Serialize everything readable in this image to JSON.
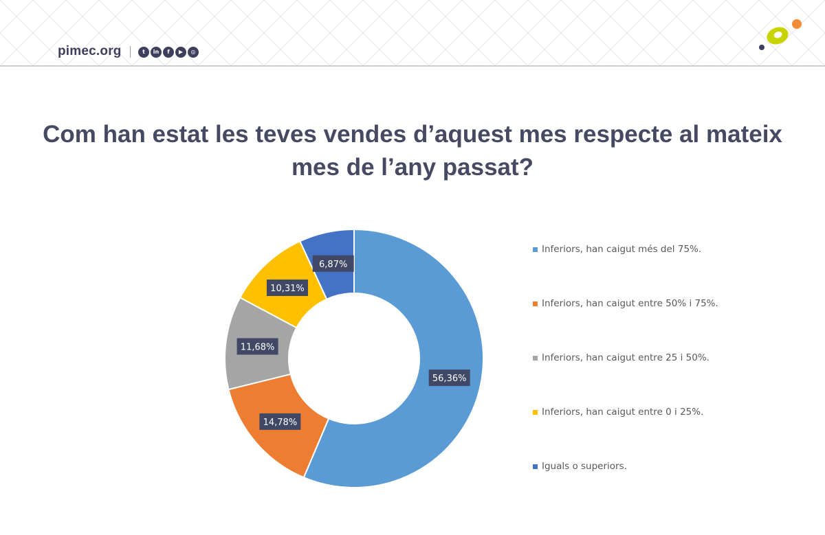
{
  "header": {
    "site": "pimec.org",
    "social_icons": [
      {
        "name": "twitter-icon",
        "glyph": "t"
      },
      {
        "name": "linkedin-icon",
        "glyph": "in"
      },
      {
        "name": "facebook-icon",
        "glyph": "f"
      },
      {
        "name": "youtube-icon",
        "glyph": "▶"
      },
      {
        "name": "instagram-icon",
        "glyph": "◎"
      }
    ]
  },
  "colors": {
    "title": "#454a62",
    "brand_dark": "#3d3f5c",
    "logo_green": "#c9d300",
    "logo_orange": "#f28c38"
  },
  "chart_data": {
    "type": "pie",
    "donut": true,
    "title": "Com han estat les teves vendes d’aquest mes respecte al mateix mes de l’any passat?",
    "legend_position": "right",
    "series": [
      {
        "name": "Inferiors, han caigut més del 75%.",
        "value": 56.36,
        "label": "56,36%",
        "color": "#5b9bd5"
      },
      {
        "name": "Inferiors, han caigut entre 50% i 75%.",
        "value": 14.78,
        "label": "14,78%",
        "color": "#ed7d31"
      },
      {
        "name": "Inferiors, han caigut entre 25 i 50%.",
        "value": 11.68,
        "label": "11,68%",
        "color": "#a5a5a5"
      },
      {
        "name": "Inferiors, han caigut entre 0 i 25%.",
        "value": 10.31,
        "label": "10,31%",
        "color": "#ffc000"
      },
      {
        "name": "Iguals o superiors.",
        "value": 6.87,
        "label": "6,87%",
        "color": "#4472c4"
      }
    ]
  }
}
